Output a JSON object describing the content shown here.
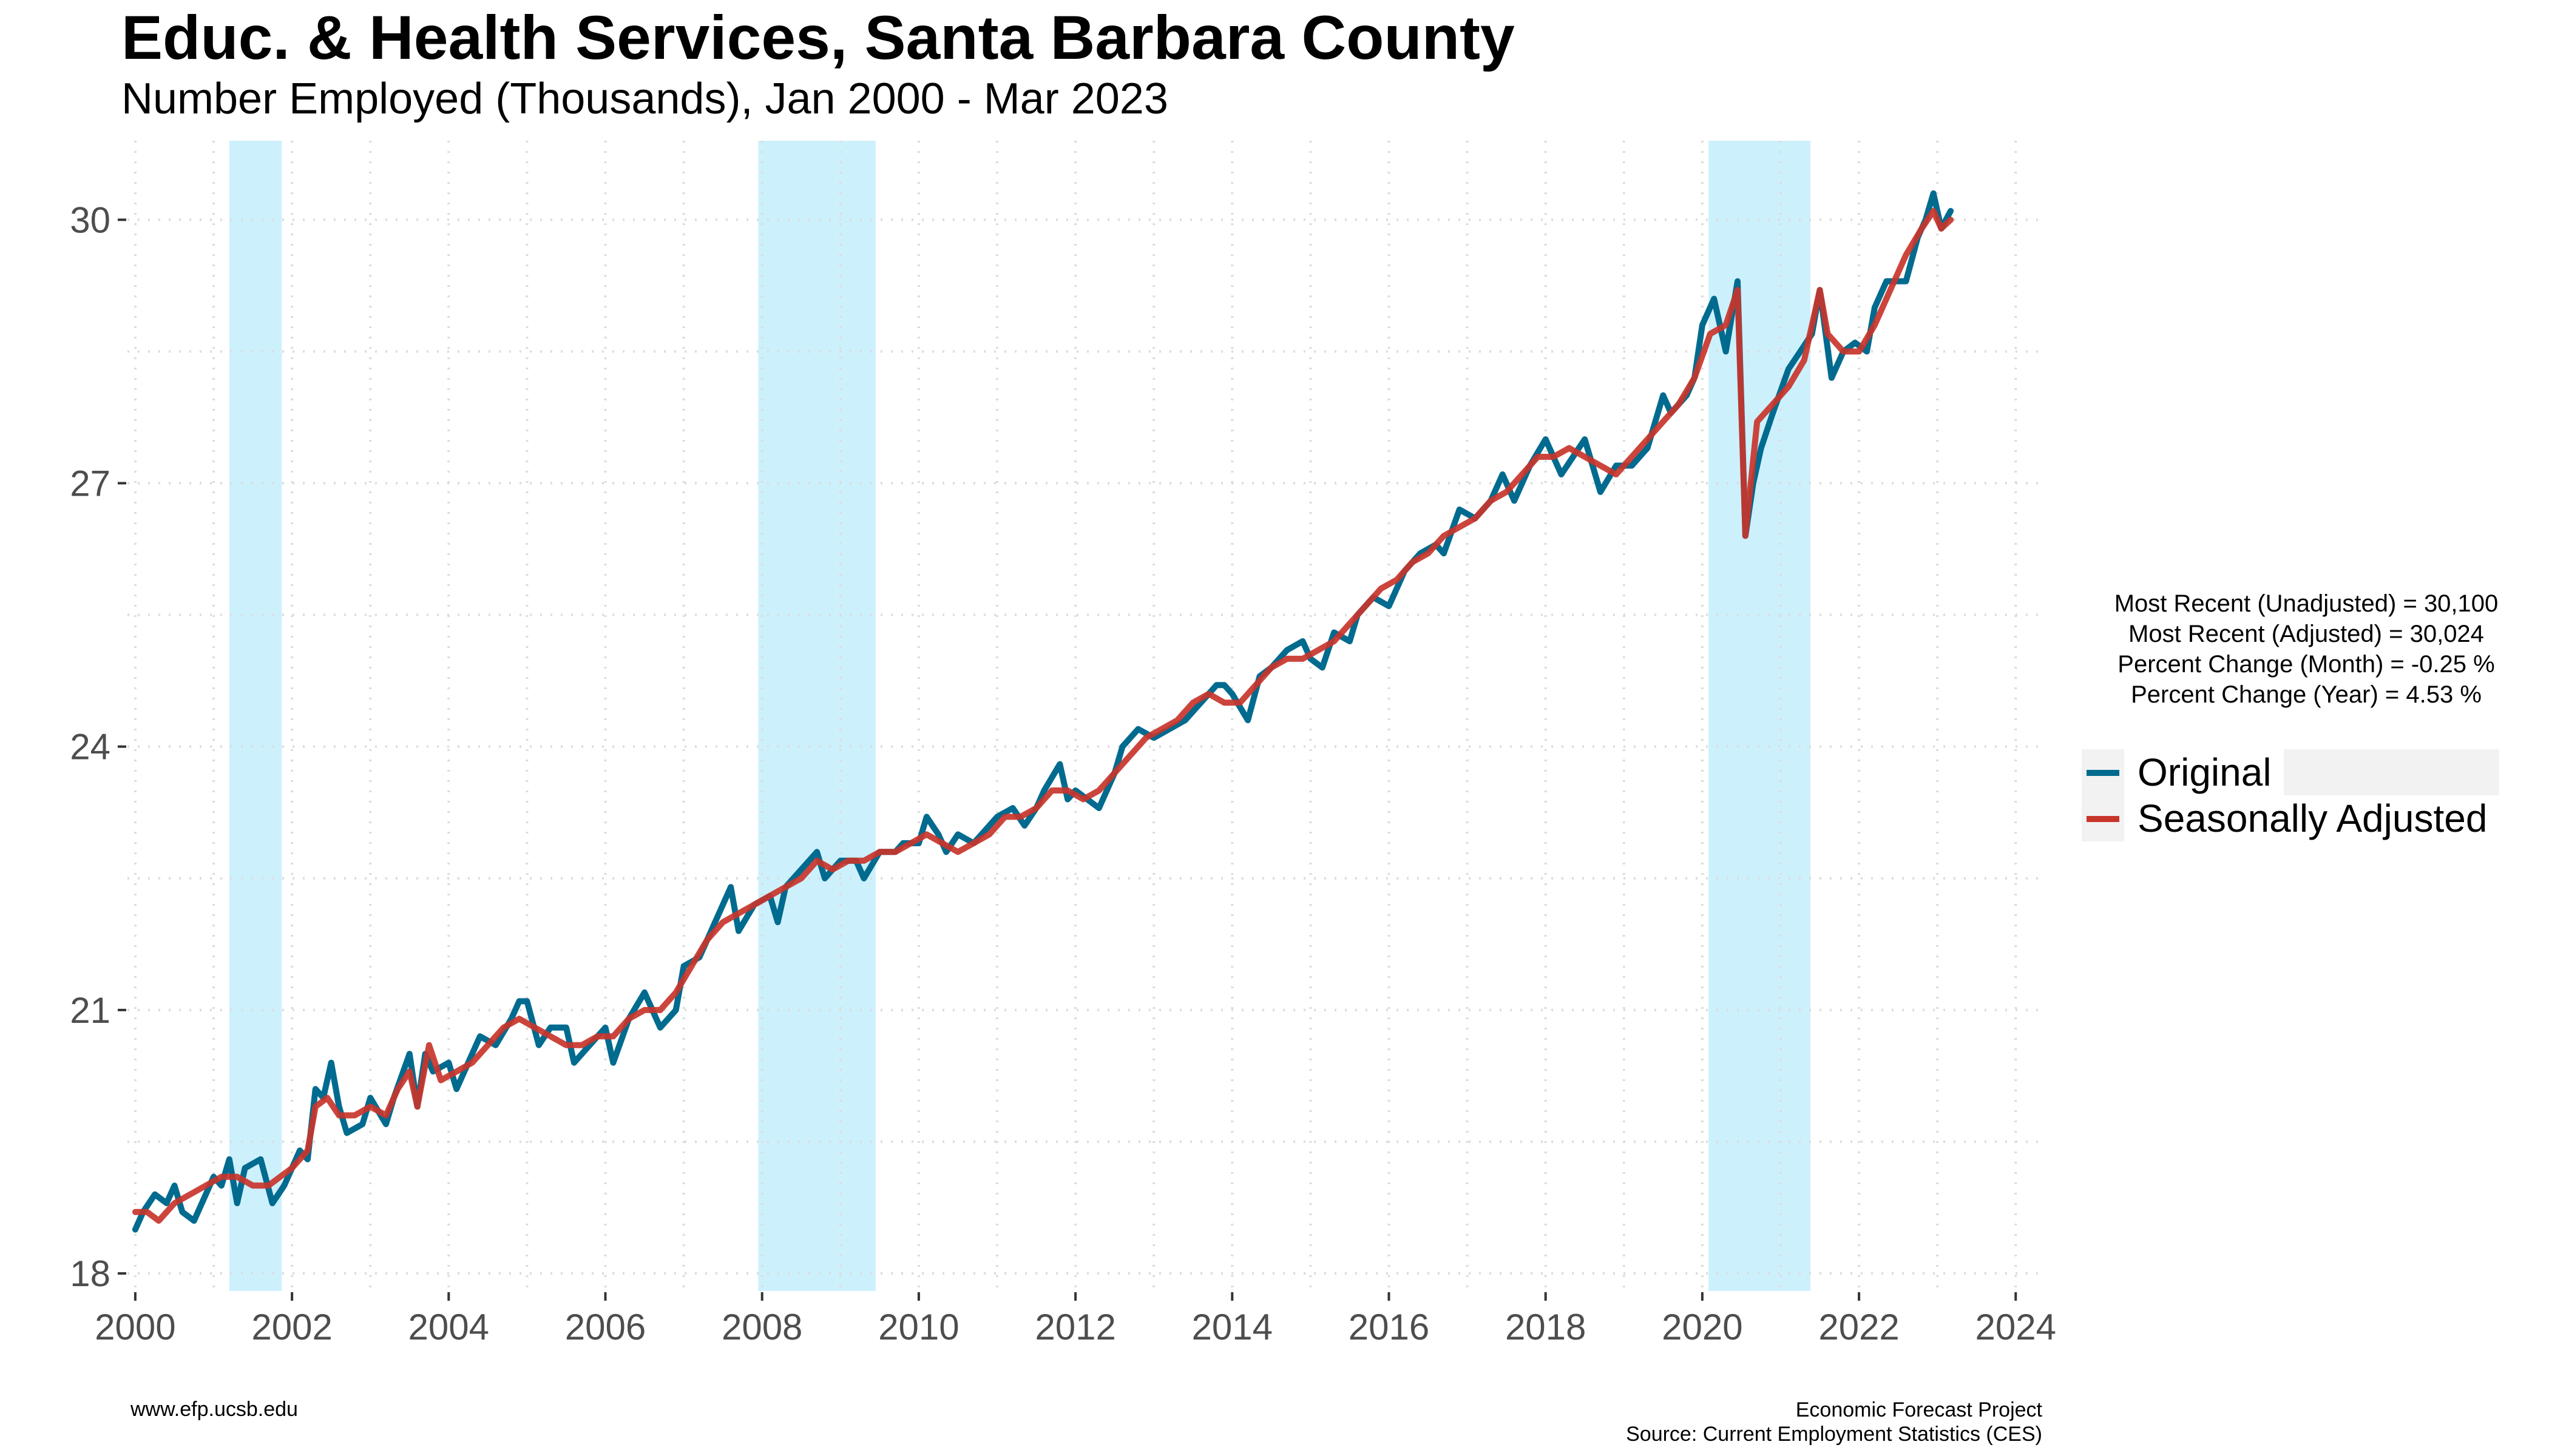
{
  "chart_data": {
    "type": "line",
    "title": "Educ. & Health Services, Santa Barbara County",
    "subtitle": "Number Employed (Thousands), Jan 2000 - Mar 2023",
    "xlabel": "",
    "ylabel": "",
    "x_ticks": [
      "2000",
      "2002",
      "2004",
      "2006",
      "2008",
      "2010",
      "2012",
      "2014",
      "2016",
      "2018",
      "2020",
      "2022",
      "2024"
    ],
    "y_ticks": [
      "18",
      "21",
      "24",
      "27",
      "30"
    ],
    "xlim": [
      1999.9,
      2024.3
    ],
    "ylim": [
      17.8,
      30.9
    ],
    "grid": true,
    "legend_position": "right",
    "recessions": [
      [
        2001.2,
        2001.87
      ],
      [
        2007.95,
        2009.45
      ],
      [
        2020.08,
        2021.38
      ]
    ],
    "series": [
      {
        "name": "Original",
        "color": "#006b8f",
        "points": [
          [
            2000.0,
            18.5
          ],
          [
            2000.1,
            18.7
          ],
          [
            2000.25,
            18.9
          ],
          [
            2000.4,
            18.8
          ],
          [
            2000.5,
            19.0
          ],
          [
            2000.6,
            18.7
          ],
          [
            2000.75,
            18.6
          ],
          [
            2000.9,
            18.9
          ],
          [
            2001.0,
            19.1
          ],
          [
            2001.1,
            19.0
          ],
          [
            2001.2,
            19.3
          ],
          [
            2001.3,
            18.8
          ],
          [
            2001.4,
            19.2
          ],
          [
            2001.6,
            19.3
          ],
          [
            2001.75,
            18.8
          ],
          [
            2001.9,
            19.0
          ],
          [
            2002.0,
            19.2
          ],
          [
            2002.1,
            19.4
          ],
          [
            2002.2,
            19.3
          ],
          [
            2002.3,
            20.1
          ],
          [
            2002.4,
            20.0
          ],
          [
            2002.5,
            20.4
          ],
          [
            2002.6,
            19.9
          ],
          [
            2002.7,
            19.6
          ],
          [
            2002.9,
            19.7
          ],
          [
            2003.0,
            20.0
          ],
          [
            2003.2,
            19.7
          ],
          [
            2003.3,
            20.0
          ],
          [
            2003.5,
            20.5
          ],
          [
            2003.6,
            19.9
          ],
          [
            2003.7,
            20.5
          ],
          [
            2003.8,
            20.3
          ],
          [
            2004.0,
            20.4
          ],
          [
            2004.1,
            20.1
          ],
          [
            2004.3,
            20.5
          ],
          [
            2004.4,
            20.7
          ],
          [
            2004.6,
            20.6
          ],
          [
            2004.8,
            20.9
          ],
          [
            2004.9,
            21.1
          ],
          [
            2005.0,
            21.1
          ],
          [
            2005.15,
            20.6
          ],
          [
            2005.3,
            20.8
          ],
          [
            2005.5,
            20.8
          ],
          [
            2005.6,
            20.4
          ],
          [
            2005.8,
            20.6
          ],
          [
            2006.0,
            20.8
          ],
          [
            2006.1,
            20.4
          ],
          [
            2006.3,
            20.9
          ],
          [
            2006.5,
            21.2
          ],
          [
            2006.7,
            20.8
          ],
          [
            2006.9,
            21.0
          ],
          [
            2007.0,
            21.5
          ],
          [
            2007.2,
            21.6
          ],
          [
            2007.4,
            22.0
          ],
          [
            2007.6,
            22.4
          ],
          [
            2007.7,
            21.9
          ],
          [
            2007.9,
            22.2
          ],
          [
            2008.1,
            22.3
          ],
          [
            2008.2,
            22.0
          ],
          [
            2008.3,
            22.4
          ],
          [
            2008.5,
            22.6
          ],
          [
            2008.7,
            22.8
          ],
          [
            2008.8,
            22.5
          ],
          [
            2009.0,
            22.7
          ],
          [
            2009.2,
            22.7
          ],
          [
            2009.3,
            22.5
          ],
          [
            2009.5,
            22.8
          ],
          [
            2009.7,
            22.8
          ],
          [
            2009.8,
            22.9
          ],
          [
            2010.0,
            22.9
          ],
          [
            2010.1,
            23.2
          ],
          [
            2010.25,
            23.0
          ],
          [
            2010.35,
            22.8
          ],
          [
            2010.5,
            23.0
          ],
          [
            2010.7,
            22.9
          ],
          [
            2010.9,
            23.1
          ],
          [
            2011.0,
            23.2
          ],
          [
            2011.2,
            23.3
          ],
          [
            2011.35,
            23.1
          ],
          [
            2011.5,
            23.3
          ],
          [
            2011.6,
            23.5
          ],
          [
            2011.8,
            23.8
          ],
          [
            2011.9,
            23.4
          ],
          [
            2012.0,
            23.5
          ],
          [
            2012.15,
            23.4
          ],
          [
            2012.3,
            23.3
          ],
          [
            2012.5,
            23.7
          ],
          [
            2012.6,
            24.0
          ],
          [
            2012.8,
            24.2
          ],
          [
            2013.0,
            24.1
          ],
          [
            2013.2,
            24.2
          ],
          [
            2013.4,
            24.3
          ],
          [
            2013.6,
            24.5
          ],
          [
            2013.8,
            24.7
          ],
          [
            2013.9,
            24.7
          ],
          [
            2014.0,
            24.6
          ],
          [
            2014.2,
            24.3
          ],
          [
            2014.35,
            24.8
          ],
          [
            2014.5,
            24.9
          ],
          [
            2014.7,
            25.1
          ],
          [
            2014.9,
            25.2
          ],
          [
            2015.0,
            25.0
          ],
          [
            2015.15,
            24.9
          ],
          [
            2015.3,
            25.3
          ],
          [
            2015.5,
            25.2
          ],
          [
            2015.6,
            25.5
          ],
          [
            2015.8,
            25.7
          ],
          [
            2016.0,
            25.6
          ],
          [
            2016.2,
            26.0
          ],
          [
            2016.4,
            26.2
          ],
          [
            2016.6,
            26.3
          ],
          [
            2016.7,
            26.2
          ],
          [
            2016.9,
            26.7
          ],
          [
            2017.1,
            26.6
          ],
          [
            2017.3,
            26.8
          ],
          [
            2017.45,
            27.1
          ],
          [
            2017.6,
            26.8
          ],
          [
            2017.8,
            27.2
          ],
          [
            2018.0,
            27.5
          ],
          [
            2018.2,
            27.1
          ],
          [
            2018.35,
            27.3
          ],
          [
            2018.5,
            27.5
          ],
          [
            2018.7,
            26.9
          ],
          [
            2018.9,
            27.2
          ],
          [
            2019.1,
            27.2
          ],
          [
            2019.3,
            27.4
          ],
          [
            2019.5,
            28.0
          ],
          [
            2019.6,
            27.8
          ],
          [
            2019.8,
            28.0
          ],
          [
            2019.9,
            28.2
          ],
          [
            2020.0,
            28.8
          ],
          [
            2020.15,
            29.1
          ],
          [
            2020.3,
            28.5
          ],
          [
            2020.45,
            29.3
          ],
          [
            2020.55,
            26.4
          ],
          [
            2020.65,
            27.0
          ],
          [
            2020.75,
            27.4
          ],
          [
            2020.9,
            27.8
          ],
          [
            2021.1,
            28.3
          ],
          [
            2021.25,
            28.5
          ],
          [
            2021.4,
            28.7
          ],
          [
            2021.5,
            29.2
          ],
          [
            2021.65,
            28.2
          ],
          [
            2021.8,
            28.5
          ],
          [
            2021.95,
            28.6
          ],
          [
            2022.1,
            28.5
          ],
          [
            2022.2,
            29.0
          ],
          [
            2022.35,
            29.3
          ],
          [
            2022.5,
            29.3
          ],
          [
            2022.6,
            29.3
          ],
          [
            2022.75,
            29.8
          ],
          [
            2022.85,
            30.0
          ],
          [
            2022.95,
            30.3
          ],
          [
            2023.05,
            29.9
          ],
          [
            2023.17,
            30.1
          ]
        ]
      },
      {
        "name": "Seasonally Adjusted",
        "color": "#c8352b",
        "points": [
          [
            2000.0,
            18.7
          ],
          [
            2000.15,
            18.7
          ],
          [
            2000.3,
            18.6
          ],
          [
            2000.5,
            18.8
          ],
          [
            2000.7,
            18.9
          ],
          [
            2000.9,
            19.0
          ],
          [
            2001.1,
            19.1
          ],
          [
            2001.3,
            19.1
          ],
          [
            2001.5,
            19.0
          ],
          [
            2001.7,
            19.0
          ],
          [
            2001.85,
            19.1
          ],
          [
            2002.0,
            19.2
          ],
          [
            2002.2,
            19.4
          ],
          [
            2002.3,
            19.9
          ],
          [
            2002.45,
            20.0
          ],
          [
            2002.6,
            19.8
          ],
          [
            2002.8,
            19.8
          ],
          [
            2003.0,
            19.9
          ],
          [
            2003.2,
            19.8
          ],
          [
            2003.35,
            20.1
          ],
          [
            2003.5,
            20.3
          ],
          [
            2003.6,
            19.9
          ],
          [
            2003.75,
            20.6
          ],
          [
            2003.9,
            20.2
          ],
          [
            2004.1,
            20.3
          ],
          [
            2004.3,
            20.4
          ],
          [
            2004.5,
            20.6
          ],
          [
            2004.7,
            20.8
          ],
          [
            2004.9,
            20.9
          ],
          [
            2005.1,
            20.8
          ],
          [
            2005.3,
            20.7
          ],
          [
            2005.5,
            20.6
          ],
          [
            2005.7,
            20.6
          ],
          [
            2005.9,
            20.7
          ],
          [
            2006.1,
            20.7
          ],
          [
            2006.3,
            20.9
          ],
          [
            2006.5,
            21.0
          ],
          [
            2006.7,
            21.0
          ],
          [
            2006.9,
            21.2
          ],
          [
            2007.1,
            21.5
          ],
          [
            2007.3,
            21.8
          ],
          [
            2007.5,
            22.0
          ],
          [
            2007.7,
            22.1
          ],
          [
            2007.9,
            22.2
          ],
          [
            2008.1,
            22.3
          ],
          [
            2008.3,
            22.4
          ],
          [
            2008.5,
            22.5
          ],
          [
            2008.7,
            22.7
          ],
          [
            2008.9,
            22.6
          ],
          [
            2009.1,
            22.7
          ],
          [
            2009.3,
            22.7
          ],
          [
            2009.5,
            22.8
          ],
          [
            2009.7,
            22.8
          ],
          [
            2009.9,
            22.9
          ],
          [
            2010.1,
            23.0
          ],
          [
            2010.3,
            22.9
          ],
          [
            2010.5,
            22.8
          ],
          [
            2010.7,
            22.9
          ],
          [
            2010.9,
            23.0
          ],
          [
            2011.1,
            23.2
          ],
          [
            2011.3,
            23.2
          ],
          [
            2011.5,
            23.3
          ],
          [
            2011.7,
            23.5
          ],
          [
            2011.9,
            23.5
          ],
          [
            2012.1,
            23.4
          ],
          [
            2012.3,
            23.5
          ],
          [
            2012.5,
            23.7
          ],
          [
            2012.7,
            23.9
          ],
          [
            2012.9,
            24.1
          ],
          [
            2013.1,
            24.2
          ],
          [
            2013.3,
            24.3
          ],
          [
            2013.5,
            24.5
          ],
          [
            2013.7,
            24.6
          ],
          [
            2013.9,
            24.5
          ],
          [
            2014.1,
            24.5
          ],
          [
            2014.3,
            24.7
          ],
          [
            2014.5,
            24.9
          ],
          [
            2014.7,
            25.0
          ],
          [
            2014.9,
            25.0
          ],
          [
            2015.1,
            25.1
          ],
          [
            2015.3,
            25.2
          ],
          [
            2015.5,
            25.4
          ],
          [
            2015.7,
            25.6
          ],
          [
            2015.9,
            25.8
          ],
          [
            2016.1,
            25.9
          ],
          [
            2016.3,
            26.1
          ],
          [
            2016.5,
            26.2
          ],
          [
            2016.7,
            26.4
          ],
          [
            2016.9,
            26.5
          ],
          [
            2017.1,
            26.6
          ],
          [
            2017.3,
            26.8
          ],
          [
            2017.5,
            26.9
          ],
          [
            2017.7,
            27.1
          ],
          [
            2017.9,
            27.3
          ],
          [
            2018.1,
            27.3
          ],
          [
            2018.3,
            27.4
          ],
          [
            2018.5,
            27.3
          ],
          [
            2018.7,
            27.2
          ],
          [
            2018.9,
            27.1
          ],
          [
            2019.1,
            27.3
          ],
          [
            2019.3,
            27.5
          ],
          [
            2019.5,
            27.7
          ],
          [
            2019.7,
            27.9
          ],
          [
            2019.9,
            28.2
          ],
          [
            2020.1,
            28.7
          ],
          [
            2020.3,
            28.8
          ],
          [
            2020.45,
            29.2
          ],
          [
            2020.55,
            26.4
          ],
          [
            2020.7,
            27.7
          ],
          [
            2020.9,
            27.9
          ],
          [
            2021.1,
            28.1
          ],
          [
            2021.3,
            28.4
          ],
          [
            2021.5,
            29.2
          ],
          [
            2021.6,
            28.7
          ],
          [
            2021.8,
            28.5
          ],
          [
            2022.0,
            28.5
          ],
          [
            2022.2,
            28.8
          ],
          [
            2022.4,
            29.2
          ],
          [
            2022.6,
            29.6
          ],
          [
            2022.8,
            29.9
          ],
          [
            2022.95,
            30.1
          ],
          [
            2023.05,
            29.9
          ],
          [
            2023.17,
            30.0
          ]
        ]
      }
    ]
  },
  "stats": {
    "line1": "Most Recent (Unadjusted) = 30,100",
    "line2": "Most Recent (Adjusted) = 30,024",
    "line3": "Percent Change (Month) = -0.25 %",
    "line4": "Percent Change (Year) = 4.53 %"
  },
  "footer": {
    "website": "www.efp.ucsb.edu",
    "org": "Economic Forecast Project",
    "source": "Source: Current Employment Statistics (CES)"
  }
}
